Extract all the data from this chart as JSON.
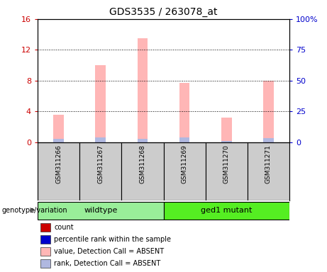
{
  "title": "GDS3535 / 263078_at",
  "samples": [
    "GSM311266",
    "GSM311267",
    "GSM311268",
    "GSM311269",
    "GSM311270",
    "GSM311271"
  ],
  "absent_value": [
    3.6,
    10.0,
    13.5,
    7.7,
    3.2,
    8.0
  ],
  "absent_rank": [
    2.5,
    3.7,
    2.5,
    4.0,
    1.2,
    3.5
  ],
  "left_ylim": [
    0,
    16
  ],
  "left_yticks": [
    0,
    4,
    8,
    12,
    16
  ],
  "right_ylim": [
    0,
    100
  ],
  "right_yticks": [
    0,
    25,
    50,
    75,
    100
  ],
  "right_yticklabels": [
    "0",
    "25",
    "50",
    "75",
    "100%"
  ],
  "left_tick_color": "#CC0000",
  "right_tick_color": "#0000CC",
  "bar_width": 0.25,
  "absent_bar_color": "#FFB6B6",
  "absent_rank_color": "#B0B8E0",
  "legend_items": [
    {
      "color": "#CC0000",
      "label": "count"
    },
    {
      "color": "#0000CC",
      "label": "percentile rank within the sample"
    },
    {
      "color": "#FFB6B6",
      "label": "value, Detection Call = ABSENT"
    },
    {
      "color": "#B0B8E0",
      "label": "rank, Detection Call = ABSENT"
    }
  ],
  "genotype_label": "genotype/variation",
  "sample_box_color": "#CCCCCC",
  "group_defs": [
    {
      "label": "wildtype",
      "start": 0,
      "end": 2,
      "color": "#99EE99"
    },
    {
      "label": "ged1 mutant",
      "start": 3,
      "end": 5,
      "color": "#55EE22"
    }
  ],
  "plot_bg": "#FFFFFF",
  "fig_bg": "#FFFFFF"
}
